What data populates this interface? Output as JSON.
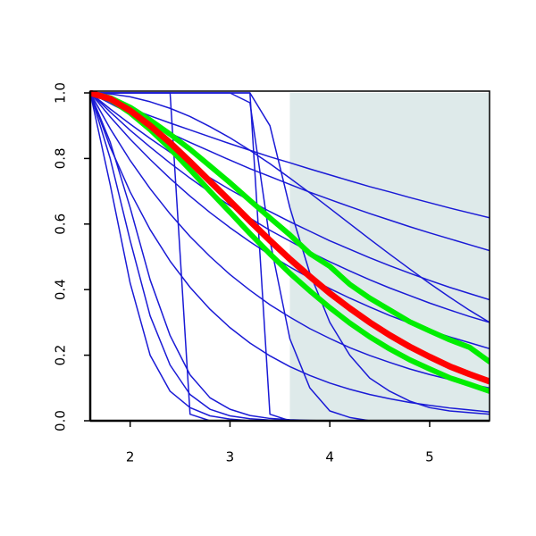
{
  "chart_data": {
    "type": "line",
    "x": [
      1.6,
      1.8,
      2.0,
      2.2,
      2.4,
      2.6,
      2.8,
      3.0,
      3.2,
      3.4,
      3.6,
      3.8,
      4.0,
      4.2,
      4.4,
      4.6,
      4.8,
      5.0,
      5.2,
      5.4,
      5.6
    ],
    "xlim": [
      1.6,
      5.6
    ],
    "xticks": [
      2,
      3,
      4,
      5
    ],
    "ylim": [
      0,
      1
    ],
    "yticks": [
      {
        "value": 0,
        "label": "0.0"
      },
      0.2,
      0.4,
      0.6,
      0.8,
      {
        "value": 1,
        "label": "1.0"
      }
    ],
    "shaded_region": {
      "xlim": [
        3.6,
        5.6
      ],
      "color": "#deeaea"
    },
    "series": [
      {
        "color": "#1a1ad6",
        "width": 1.5,
        "values": [
          1,
          0.976,
          0.953,
          0.93,
          0.908,
          0.887,
          0.866,
          0.845,
          0.825,
          0.805,
          0.787,
          0.768,
          0.75,
          0.732,
          0.714,
          0.698,
          0.681,
          0.665,
          0.649,
          0.634,
          0.619
        ]
      },
      {
        "color": "#1a1ad6",
        "width": 1.5,
        "values": [
          1,
          0.968,
          0.937,
          0.906,
          0.877,
          0.849,
          0.822,
          0.795,
          0.769,
          0.745,
          0.721,
          0.697,
          0.675,
          0.653,
          0.632,
          0.612,
          0.592,
          0.573,
          0.555,
          0.537,
          0.519
        ]
      },
      {
        "color": "#1a1ad6",
        "width": 1.5,
        "values": [
          1,
          0.951,
          0.905,
          0.861,
          0.819,
          0.779,
          0.741,
          0.705,
          0.671,
          0.638,
          0.607,
          0.578,
          0.549,
          0.523,
          0.497,
          0.473,
          0.45,
          0.428,
          0.407,
          0.388,
          0.369
        ]
      },
      {
        "color": "#1a1ad6",
        "width": 1.5,
        "values": [
          1,
          0.942,
          0.886,
          0.835,
          0.786,
          0.74,
          0.697,
          0.656,
          0.618,
          0.581,
          0.548,
          0.515,
          0.485,
          0.457,
          0.43,
          0.405,
          0.382,
          0.359,
          0.338,
          0.318,
          0.3
        ]
      },
      {
        "color": "#1a1ad6",
        "width": 1.5,
        "values": [
          1,
          0.997,
          0.988,
          0.973,
          0.953,
          0.928,
          0.897,
          0.863,
          0.825,
          0.784,
          0.74,
          0.695,
          0.648,
          0.601,
          0.554,
          0.508,
          0.463,
          0.419,
          0.377,
          0.337,
          0.3
        ]
      },
      {
        "color": "#1a1ad6",
        "width": 1.5,
        "values": [
          1,
          0.927,
          0.859,
          0.797,
          0.739,
          0.685,
          0.635,
          0.589,
          0.546,
          0.506,
          0.469,
          0.435,
          0.403,
          0.374,
          0.347,
          0.321,
          0.298,
          0.276,
          0.256,
          0.238,
          0.22
        ]
      },
      {
        "color": "#1a1ad6",
        "width": 1.5,
        "values": [
          1,
          0.891,
          0.794,
          0.708,
          0.631,
          0.562,
          0.501,
          0.446,
          0.398,
          0.354,
          0.316,
          0.281,
          0.251,
          0.223,
          0.199,
          0.178,
          0.158,
          0.141,
          0.126,
          0.112,
          0.1
        ]
      },
      {
        "color": "#1a1ad6",
        "width": 1.5,
        "values": [
          1,
          0.835,
          0.698,
          0.583,
          0.487,
          0.407,
          0.34,
          0.284,
          0.237,
          0.198,
          0.165,
          0.138,
          0.115,
          0.096,
          0.08,
          0.067,
          0.056,
          0.047,
          0.039,
          0.033,
          0.027
        ]
      },
      {
        "color": "#1a1ad6",
        "width": 1.5,
        "values": [
          1,
          1,
          1,
          1,
          1,
          0.02,
          0,
          0,
          0,
          0,
          0,
          0,
          0,
          0,
          0,
          0,
          0,
          0,
          0,
          0,
          0
        ]
      },
      {
        "color": "#1a1ad6",
        "width": 1.5,
        "values": [
          1,
          1,
          1,
          1,
          1,
          1,
          1,
          1,
          1,
          0.02,
          0,
          0,
          0,
          0,
          0,
          0,
          0,
          0,
          0,
          0,
          0
        ]
      },
      {
        "color": "#1a1ad6",
        "width": 1.5,
        "values": [
          1,
          1,
          1,
          1,
          1,
          1,
          1,
          1,
          0.97,
          0.55,
          0.25,
          0.1,
          0.03,
          0.01,
          0,
          0,
          0,
          0,
          0,
          0,
          0
        ]
      },
      {
        "color": "#1a1ad6",
        "width": 1.5,
        "values": [
          1,
          1,
          1,
          1,
          1,
          1,
          1,
          1,
          1,
          0.9,
          0.65,
          0.45,
          0.3,
          0.2,
          0.13,
          0.09,
          0.06,
          0.04,
          0.03,
          0.025,
          0.02
        ]
      },
      {
        "color": "#1a1ad6",
        "width": 1.5,
        "values": [
          1,
          0.72,
          0.42,
          0.2,
          0.09,
          0.04,
          0.015,
          0.005,
          0,
          0,
          0,
          0,
          0,
          0,
          0,
          0,
          0,
          0,
          0,
          0,
          0
        ]
      },
      {
        "color": "#1a1ad6",
        "width": 1.5,
        "values": [
          1,
          0.8,
          0.55,
          0.32,
          0.17,
          0.08,
          0.035,
          0.015,
          0.006,
          0.002,
          0,
          0,
          0,
          0,
          0,
          0,
          0,
          0,
          0,
          0,
          0
        ]
      },
      {
        "color": "#1a1ad6",
        "width": 1.5,
        "values": [
          1,
          0.85,
          0.65,
          0.43,
          0.26,
          0.14,
          0.07,
          0.035,
          0.016,
          0.007,
          0.003,
          0.001,
          0,
          0,
          0,
          0,
          0,
          0,
          0,
          0,
          0
        ]
      },
      {
        "color": "#00ee00",
        "width": 6,
        "values": [
          1,
          0.985,
          0.956,
          0.917,
          0.874,
          0.828,
          0.777,
          0.726,
          0.672,
          0.619,
          0.567,
          0.51,
          0.471,
          0.416,
          0.374,
          0.338,
          0.302,
          0.274,
          0.247,
          0.224,
          0.18
        ]
      },
      {
        "color": "#00ee00",
        "width": 6,
        "values": [
          1,
          0.98,
          0.939,
          0.888,
          0.83,
          0.766,
          0.7,
          0.636,
          0.571,
          0.509,
          0.45,
          0.396,
          0.345,
          0.298,
          0.256,
          0.219,
          0.186,
          0.158,
          0.131,
          0.111,
          0.09
        ]
      },
      {
        "color": "#ff0000",
        "width": 7,
        "values": [
          1,
          0.982,
          0.946,
          0.9,
          0.848,
          0.79,
          0.73,
          0.67,
          0.609,
          0.55,
          0.493,
          0.44,
          0.389,
          0.343,
          0.3,
          0.261,
          0.226,
          0.195,
          0.166,
          0.142,
          0.12
        ]
      }
    ]
  }
}
